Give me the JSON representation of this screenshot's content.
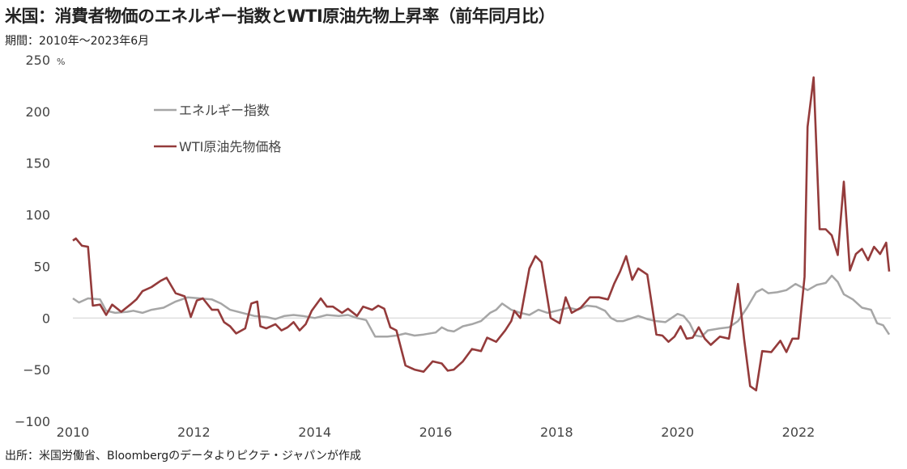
{
  "title": "米国：消費者物価のエネルギー指数とWTI原油先物上昇率（前年同月比）",
  "subtitle": "期間：2010年～2023年6月",
  "source": "出所：米国労働省、Bloombergのデータよりピクテ・ジャパンが作成",
  "chart_data": {
    "type": "line",
    "y_unit": "%",
    "ylim": [
      -100,
      250
    ],
    "y_ticks": [
      250,
      200,
      150,
      100,
      50,
      0,
      -50,
      -100
    ],
    "y_tick_labels": [
      "250",
      "200",
      "150",
      "100",
      "50",
      "0",
      "−50",
      "−100"
    ],
    "xlim": [
      2010.0,
      2023.5
    ],
    "x_ticks": [
      2010,
      2012,
      2014,
      2016,
      2018,
      2020,
      2022
    ],
    "x_tick_labels": [
      "2010",
      "2012",
      "2014",
      "2016",
      "2018",
      "2020",
      "2022"
    ],
    "legend_position": "top-left",
    "series": [
      {
        "name": "エネルギー指数",
        "color": "#a6a6a6",
        "points": [
          [
            2010.0,
            19
          ],
          [
            2010.1,
            15
          ],
          [
            2010.25,
            19
          ],
          [
            2010.45,
            18
          ],
          [
            2010.55,
            7
          ],
          [
            2010.7,
            5
          ],
          [
            2010.9,
            6
          ],
          [
            2011.0,
            7
          ],
          [
            2011.15,
            5
          ],
          [
            2011.3,
            8
          ],
          [
            2011.5,
            10
          ],
          [
            2011.7,
            16
          ],
          [
            2011.9,
            20
          ],
          [
            2012.1,
            19
          ],
          [
            2012.3,
            18
          ],
          [
            2012.45,
            14
          ],
          [
            2012.6,
            8
          ],
          [
            2012.8,
            5
          ],
          [
            2013.0,
            2
          ],
          [
            2013.2,
            1
          ],
          [
            2013.35,
            -1
          ],
          [
            2013.5,
            2
          ],
          [
            2013.65,
            3
          ],
          [
            2013.8,
            2
          ],
          [
            2014.0,
            0
          ],
          [
            2014.2,
            3
          ],
          [
            2014.4,
            2
          ],
          [
            2014.55,
            3
          ],
          [
            2014.7,
            0
          ],
          [
            2014.85,
            -2
          ],
          [
            2015.0,
            -18
          ],
          [
            2015.2,
            -18
          ],
          [
            2015.35,
            -17
          ],
          [
            2015.5,
            -15
          ],
          [
            2015.65,
            -17
          ],
          [
            2015.8,
            -16
          ],
          [
            2016.0,
            -14
          ],
          [
            2016.1,
            -9
          ],
          [
            2016.2,
            -12
          ],
          [
            2016.3,
            -13
          ],
          [
            2016.45,
            -8
          ],
          [
            2016.6,
            -6
          ],
          [
            2016.75,
            -3
          ],
          [
            2016.9,
            5
          ],
          [
            2017.0,
            8
          ],
          [
            2017.1,
            14
          ],
          [
            2017.25,
            8
          ],
          [
            2017.4,
            5
          ],
          [
            2017.55,
            3
          ],
          [
            2017.7,
            8
          ],
          [
            2017.85,
            5
          ],
          [
            2018.0,
            7
          ],
          [
            2018.2,
            10
          ],
          [
            2018.35,
            8
          ],
          [
            2018.5,
            12
          ],
          [
            2018.65,
            11
          ],
          [
            2018.8,
            7
          ],
          [
            2018.9,
            0
          ],
          [
            2019.0,
            -3
          ],
          [
            2019.1,
            -3
          ],
          [
            2019.25,
            0
          ],
          [
            2019.35,
            2
          ],
          [
            2019.5,
            -1
          ],
          [
            2019.65,
            -3
          ],
          [
            2019.8,
            -4
          ],
          [
            2019.9,
            0
          ],
          [
            2020.0,
            4
          ],
          [
            2020.1,
            2
          ],
          [
            2020.2,
            -5
          ],
          [
            2020.3,
            -17
          ],
          [
            2020.4,
            -18
          ],
          [
            2020.5,
            -12
          ],
          [
            2020.7,
            -10
          ],
          [
            2020.85,
            -9
          ],
          [
            2021.0,
            -3
          ],
          [
            2021.15,
            10
          ],
          [
            2021.3,
            25
          ],
          [
            2021.4,
            28
          ],
          [
            2021.5,
            24
          ],
          [
            2021.65,
            25
          ],
          [
            2021.8,
            27
          ],
          [
            2021.95,
            33
          ],
          [
            2022.05,
            30
          ],
          [
            2022.15,
            27
          ],
          [
            2022.3,
            32
          ],
          [
            2022.45,
            34
          ],
          [
            2022.55,
            41
          ],
          [
            2022.65,
            35
          ],
          [
            2022.75,
            23
          ],
          [
            2022.9,
            18
          ],
          [
            2023.05,
            10
          ],
          [
            2023.2,
            8
          ],
          [
            2023.3,
            -5
          ],
          [
            2023.4,
            -7
          ],
          [
            2023.5,
            -16
          ]
        ]
      },
      {
        "name": "WTI原油先物価格",
        "color": "#943b3b",
        "points": [
          [
            2010.0,
            75
          ],
          [
            2010.05,
            77
          ],
          [
            2010.15,
            70
          ],
          [
            2010.25,
            69
          ],
          [
            2010.33,
            12
          ],
          [
            2010.45,
            13
          ],
          [
            2010.55,
            3
          ],
          [
            2010.65,
            13
          ],
          [
            2010.8,
            6
          ],
          [
            2010.95,
            13
          ],
          [
            2011.05,
            18
          ],
          [
            2011.15,
            26
          ],
          [
            2011.3,
            30
          ],
          [
            2011.45,
            36
          ],
          [
            2011.55,
            39
          ],
          [
            2011.7,
            24
          ],
          [
            2011.85,
            21
          ],
          [
            2011.95,
            1
          ],
          [
            2012.05,
            17
          ],
          [
            2012.15,
            19
          ],
          [
            2012.3,
            8
          ],
          [
            2012.4,
            8
          ],
          [
            2012.5,
            -4
          ],
          [
            2012.6,
            -8
          ],
          [
            2012.7,
            -15
          ],
          [
            2012.85,
            -10
          ],
          [
            2012.95,
            14
          ],
          [
            2013.05,
            16
          ],
          [
            2013.1,
            -8
          ],
          [
            2013.2,
            -10
          ],
          [
            2013.35,
            -6
          ],
          [
            2013.45,
            -12
          ],
          [
            2013.55,
            -9
          ],
          [
            2013.65,
            -4
          ],
          [
            2013.75,
            -12
          ],
          [
            2013.85,
            -6
          ],
          [
            2013.95,
            7
          ],
          [
            2014.1,
            19
          ],
          [
            2014.2,
            11
          ],
          [
            2014.3,
            11
          ],
          [
            2014.45,
            5
          ],
          [
            2014.55,
            9
          ],
          [
            2014.7,
            2
          ],
          [
            2014.8,
            11
          ],
          [
            2014.95,
            8
          ],
          [
            2015.05,
            12
          ],
          [
            2015.15,
            9
          ],
          [
            2015.25,
            -9
          ],
          [
            2015.35,
            -12
          ],
          [
            2015.5,
            -46
          ],
          [
            2015.65,
            -50
          ],
          [
            2015.8,
            -52
          ],
          [
            2015.95,
            -42
          ],
          [
            2016.1,
            -44
          ],
          [
            2016.2,
            -51
          ],
          [
            2016.3,
            -50
          ],
          [
            2016.45,
            -42
          ],
          [
            2016.6,
            -30
          ],
          [
            2016.75,
            -32
          ],
          [
            2016.85,
            -19
          ],
          [
            2017.0,
            -23
          ],
          [
            2017.15,
            -12
          ],
          [
            2017.25,
            -3
          ],
          [
            2017.3,
            7
          ],
          [
            2017.4,
            0
          ],
          [
            2017.55,
            48
          ],
          [
            2017.65,
            60
          ],
          [
            2017.75,
            54
          ],
          [
            2017.9,
            0
          ],
          [
            2018.05,
            -5
          ],
          [
            2018.15,
            20
          ],
          [
            2018.25,
            5
          ],
          [
            2018.4,
            10
          ],
          [
            2018.55,
            20
          ],
          [
            2018.7,
            20
          ],
          [
            2018.85,
            18
          ],
          [
            2018.95,
            33
          ],
          [
            2019.05,
            45
          ],
          [
            2019.15,
            60
          ],
          [
            2019.25,
            37
          ],
          [
            2019.35,
            48
          ],
          [
            2019.5,
            42
          ],
          [
            2019.65,
            -16
          ],
          [
            2019.75,
            -17
          ],
          [
            2019.85,
            -23
          ],
          [
            2019.95,
            -18
          ],
          [
            2020.05,
            -8
          ],
          [
            2020.15,
            -20
          ],
          [
            2020.25,
            -19
          ],
          [
            2020.35,
            -9
          ],
          [
            2020.45,
            -20
          ],
          [
            2020.55,
            -26
          ],
          [
            2020.7,
            -18
          ],
          [
            2020.85,
            -20
          ],
          [
            2021.0,
            33
          ],
          [
            2021.1,
            -20
          ],
          [
            2021.2,
            -66
          ],
          [
            2021.3,
            -70
          ],
          [
            2021.4,
            -32
          ],
          [
            2021.55,
            -33
          ],
          [
            2021.7,
            -22
          ],
          [
            2021.8,
            -33
          ],
          [
            2021.9,
            -20
          ],
          [
            2022.0,
            -20
          ],
          [
            2022.1,
            40
          ],
          [
            2022.15,
            185
          ],
          [
            2022.25,
            233
          ],
          [
            2022.35,
            86
          ],
          [
            2022.45,
            86
          ],
          [
            2022.55,
            80
          ],
          [
            2022.65,
            61
          ],
          [
            2022.75,
            132
          ],
          [
            2022.85,
            46
          ],
          [
            2022.95,
            62
          ],
          [
            2023.05,
            67
          ],
          [
            2023.15,
            56
          ],
          [
            2023.25,
            69
          ],
          [
            2023.35,
            62
          ],
          [
            2023.45,
            73
          ],
          [
            2023.5,
            45
          ]
        ]
      }
    ]
  }
}
